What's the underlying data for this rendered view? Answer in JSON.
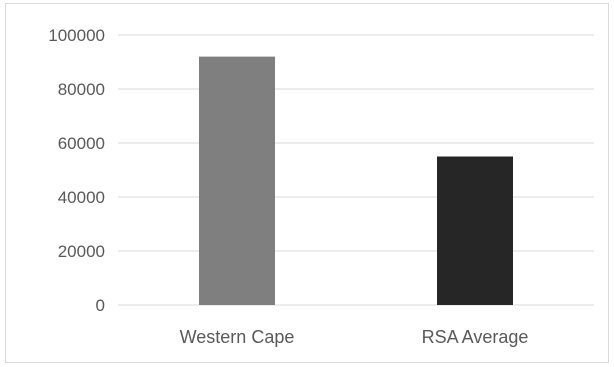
{
  "chart_data": {
    "type": "bar",
    "title": "",
    "xlabel": "",
    "ylabel": "",
    "categories": [
      "Western Cape",
      "RSA Average"
    ],
    "values": [
      92000,
      55000
    ],
    "bar_colors": [
      "#7f7f7f",
      "#262626"
    ],
    "ylim": [
      0,
      100000
    ],
    "yticks": [
      0,
      20000,
      40000,
      60000,
      80000,
      100000
    ],
    "ytick_labels": [
      "0",
      "20000",
      "40000",
      "60000",
      "80000",
      "100000"
    ],
    "grid": true,
    "grid_color": "#d9d9d9",
    "legend": "none"
  }
}
